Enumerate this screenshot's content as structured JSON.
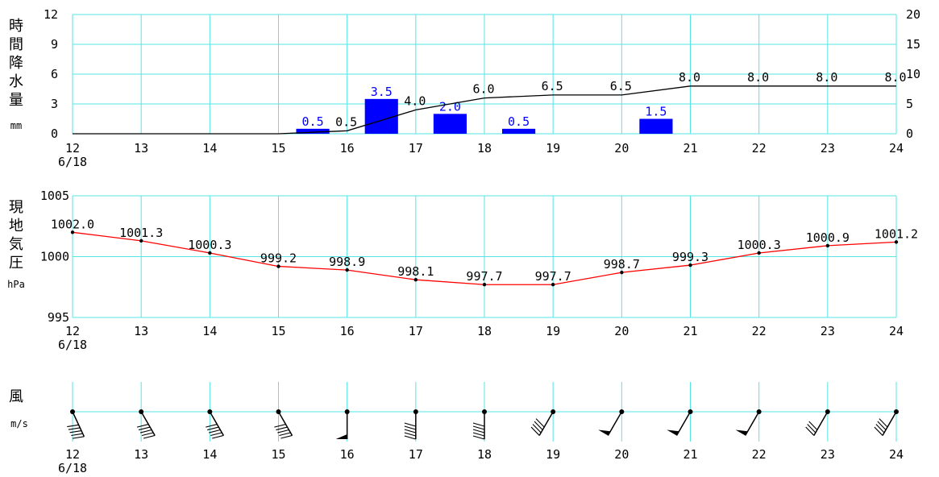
{
  "chart_data": [
    {
      "type": "bar",
      "panel": "precipitation",
      "ylabel": [
        "時",
        "間",
        "降",
        "水",
        "量"
      ],
      "yunit": "mm",
      "x_ticks": [
        "12",
        "13",
        "14",
        "15",
        "16",
        "17",
        "18",
        "19",
        "20",
        "21",
        "22",
        "23",
        "24"
      ],
      "x_date": "6/18",
      "ylim_left": [
        0,
        12
      ],
      "yticks_left": [
        0,
        3,
        6,
        9,
        12
      ],
      "ylim_right": [
        0,
        20
      ],
      "yticks_right": [
        0,
        5,
        10,
        15,
        20
      ],
      "bars": [
        {
          "hour": 16,
          "value": 0.5,
          "label": "0.5"
        },
        {
          "hour": 17,
          "value": 3.5,
          "label": "3.5"
        },
        {
          "hour": 18,
          "value": 2.0,
          "label": "2.0"
        },
        {
          "hour": 19,
          "value": 0.5,
          "label": "0.5"
        },
        {
          "hour": 21,
          "value": 1.5,
          "label": "1.5"
        }
      ],
      "cumulative": [
        {
          "hour": 12,
          "value": 0
        },
        {
          "hour": 13,
          "value": 0
        },
        {
          "hour": 14,
          "value": 0
        },
        {
          "hour": 15,
          "value": 0
        },
        {
          "hour": 16,
          "value": 0.5,
          "label": "0.5"
        },
        {
          "hour": 17,
          "value": 4.0,
          "label": "4.0"
        },
        {
          "hour": 18,
          "value": 6.0,
          "label": "6.0"
        },
        {
          "hour": 19,
          "value": 6.5,
          "label": "6.5"
        },
        {
          "hour": 20,
          "value": 6.5,
          "label": "6.5"
        },
        {
          "hour": 21,
          "value": 8.0,
          "label": "8.0"
        },
        {
          "hour": 22,
          "value": 8.0,
          "label": "8.0"
        },
        {
          "hour": 23,
          "value": 8.0,
          "label": "8.0"
        },
        {
          "hour": 24,
          "value": 8.0,
          "label": "8.0"
        }
      ],
      "grid": true,
      "colors": {
        "grid": "#55e5e5",
        "bar": "#0000ff",
        "bar_label": "#0000ff",
        "line": "#000000"
      }
    },
    {
      "type": "line",
      "panel": "pressure",
      "ylabel": [
        "現",
        "地",
        "気",
        "圧"
      ],
      "yunit": "hPa",
      "x_ticks": [
        "12",
        "13",
        "14",
        "15",
        "16",
        "17",
        "18",
        "19",
        "20",
        "21",
        "22",
        "23",
        "24"
      ],
      "x_date": "6/18",
      "ylim": [
        995,
        1005
      ],
      "yticks": [
        995,
        1000,
        1005
      ],
      "points": [
        {
          "hour": 12,
          "value": 1002.0,
          "label": "1002.0"
        },
        {
          "hour": 13,
          "value": 1001.3,
          "label": "1001.3"
        },
        {
          "hour": 14,
          "value": 1000.3,
          "label": "1000.3"
        },
        {
          "hour": 15,
          "value": 999.2,
          "label": "999.2"
        },
        {
          "hour": 16,
          "value": 998.9,
          "label": "998.9"
        },
        {
          "hour": 17,
          "value": 998.1,
          "label": "998.1"
        },
        {
          "hour": 18,
          "value": 997.7,
          "label": "997.7"
        },
        {
          "hour": 19,
          "value": 997.7,
          "label": "997.7"
        },
        {
          "hour": 20,
          "value": 998.7,
          "label": "998.7"
        },
        {
          "hour": 21,
          "value": 999.3,
          "label": "999.3"
        },
        {
          "hour": 22,
          "value": 1000.3,
          "label": "1000.3"
        },
        {
          "hour": 23,
          "value": 1000.9,
          "label": "1000.9"
        },
        {
          "hour": 24,
          "value": 1001.2,
          "label": "1001.2"
        }
      ],
      "grid": true,
      "colors": {
        "grid": "#55e5e5",
        "line": "#ff0000",
        "marker": "#000000"
      }
    },
    {
      "type": "wind_barbs",
      "panel": "wind",
      "ylabel": [
        "風"
      ],
      "yunit": "m/s",
      "x_ticks": [
        "12",
        "13",
        "14",
        "15",
        "16",
        "17",
        "18",
        "19",
        "20",
        "21",
        "22",
        "23",
        "24"
      ],
      "x_date": "6/18",
      "wind_direction_deg": [
        335,
        330,
        330,
        330,
        0,
        0,
        0,
        30,
        30,
        30,
        30,
        30,
        30
      ],
      "wind_barbs": [
        {
          "hour": 12,
          "full_barbs": 5
        },
        {
          "hour": 13,
          "full_barbs": 5
        },
        {
          "hour": 14,
          "full_barbs": 5
        },
        {
          "hour": 15,
          "full_barbs": 5
        },
        {
          "hour": 16,
          "pennants": 1
        },
        {
          "hour": 17,
          "full_barbs": 5
        },
        {
          "hour": 18,
          "full_barbs": 5
        },
        {
          "hour": 19,
          "full_barbs": 4
        },
        {
          "hour": 20,
          "pennants": 1
        },
        {
          "hour": 21,
          "pennants": 1
        },
        {
          "hour": 22,
          "pennants": 1
        },
        {
          "hour": 23,
          "full_barbs": 3
        },
        {
          "hour": 24,
          "full_barbs": 4
        }
      ],
      "colors": {
        "grid": "#55e5e5",
        "barb": "#000000"
      }
    }
  ]
}
